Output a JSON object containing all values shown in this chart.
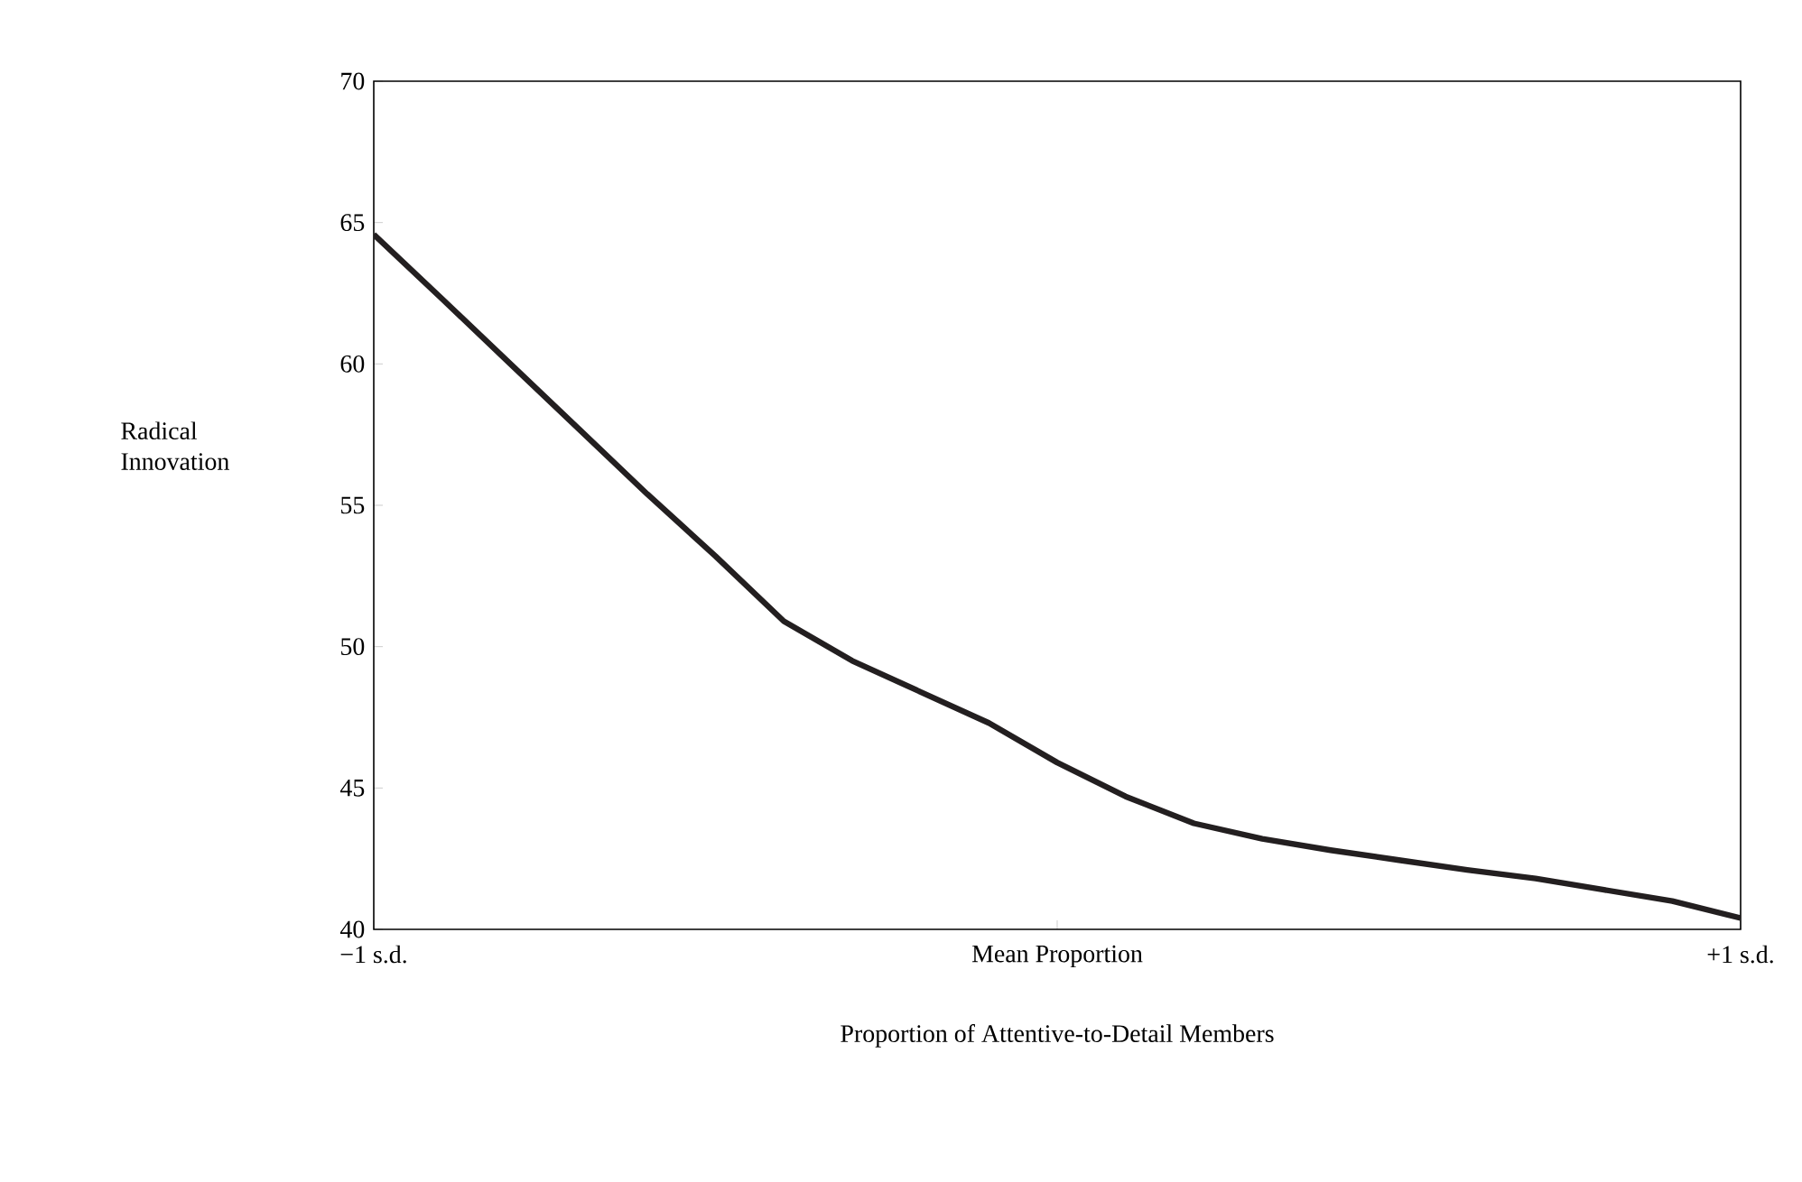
{
  "chart_data": {
    "type": "line",
    "xlabel": "Proportion of Attentive-to-Detail Members",
    "ylabel": "Radical Innovation",
    "categories": [
      "−1 s.d.",
      null,
      null,
      null,
      null,
      null,
      null,
      null,
      null,
      null,
      "Mean Proportion",
      null,
      null,
      null,
      null,
      null,
      null,
      null,
      null,
      null,
      "+1 s.d."
    ],
    "ylim": [
      40,
      70
    ],
    "yticks": [
      40,
      45,
      50,
      55,
      60,
      65,
      70
    ],
    "line_style": "solid",
    "series": [
      {
        "color": "#231f20",
        "values": [
          64.58,
          62.3,
          60.0,
          57.7,
          55.4,
          53.2,
          50.9,
          49.5,
          48.4,
          47.3,
          45.9,
          44.7,
          43.75,
          43.2,
          42.8,
          42.45,
          42.1,
          41.8,
          41.4,
          41.0,
          40.4
        ]
      }
    ]
  }
}
